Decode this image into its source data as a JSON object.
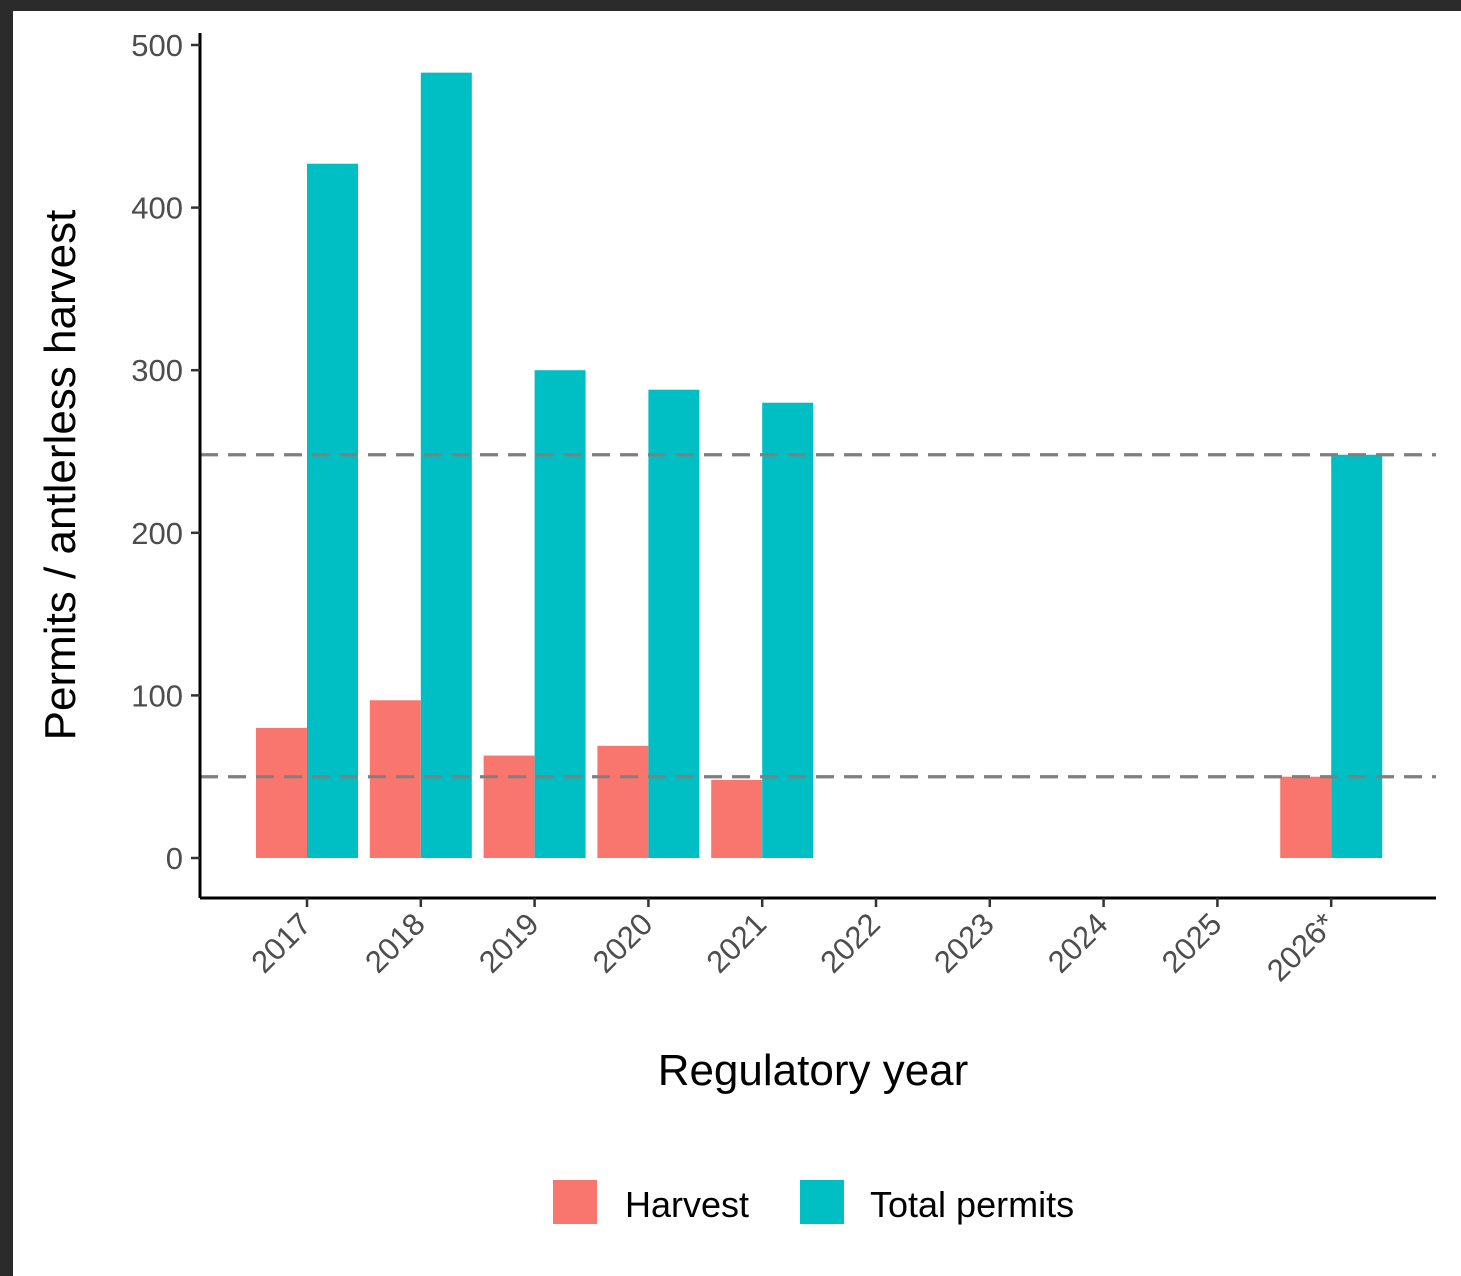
{
  "chart_data": {
    "type": "bar",
    "title": "",
    "xlabel": "Regulatory year",
    "ylabel": "Permits / antlerless harvest",
    "categories": [
      "2017",
      "2018",
      "2019",
      "2020",
      "2021",
      "2022",
      "2023",
      "2024",
      "2025",
      "2026*"
    ],
    "series": [
      {
        "name": "Harvest",
        "color": "#F8766D",
        "values": [
          80,
          97,
          63,
          69,
          48,
          null,
          null,
          null,
          null,
          50
        ]
      },
      {
        "name": "Total permits",
        "color": "#00BFC4",
        "values": [
          427,
          483,
          300,
          288,
          280,
          null,
          null,
          null,
          null,
          248
        ]
      }
    ],
    "reference_lines": [
      248,
      50
    ],
    "ylim": [
      -24,
      505
    ],
    "yticks": [
      0,
      100,
      200,
      300,
      400,
      500
    ],
    "grid": false,
    "legend": {
      "position": "bottom",
      "entries": [
        "Harvest",
        "Total permits"
      ]
    }
  }
}
